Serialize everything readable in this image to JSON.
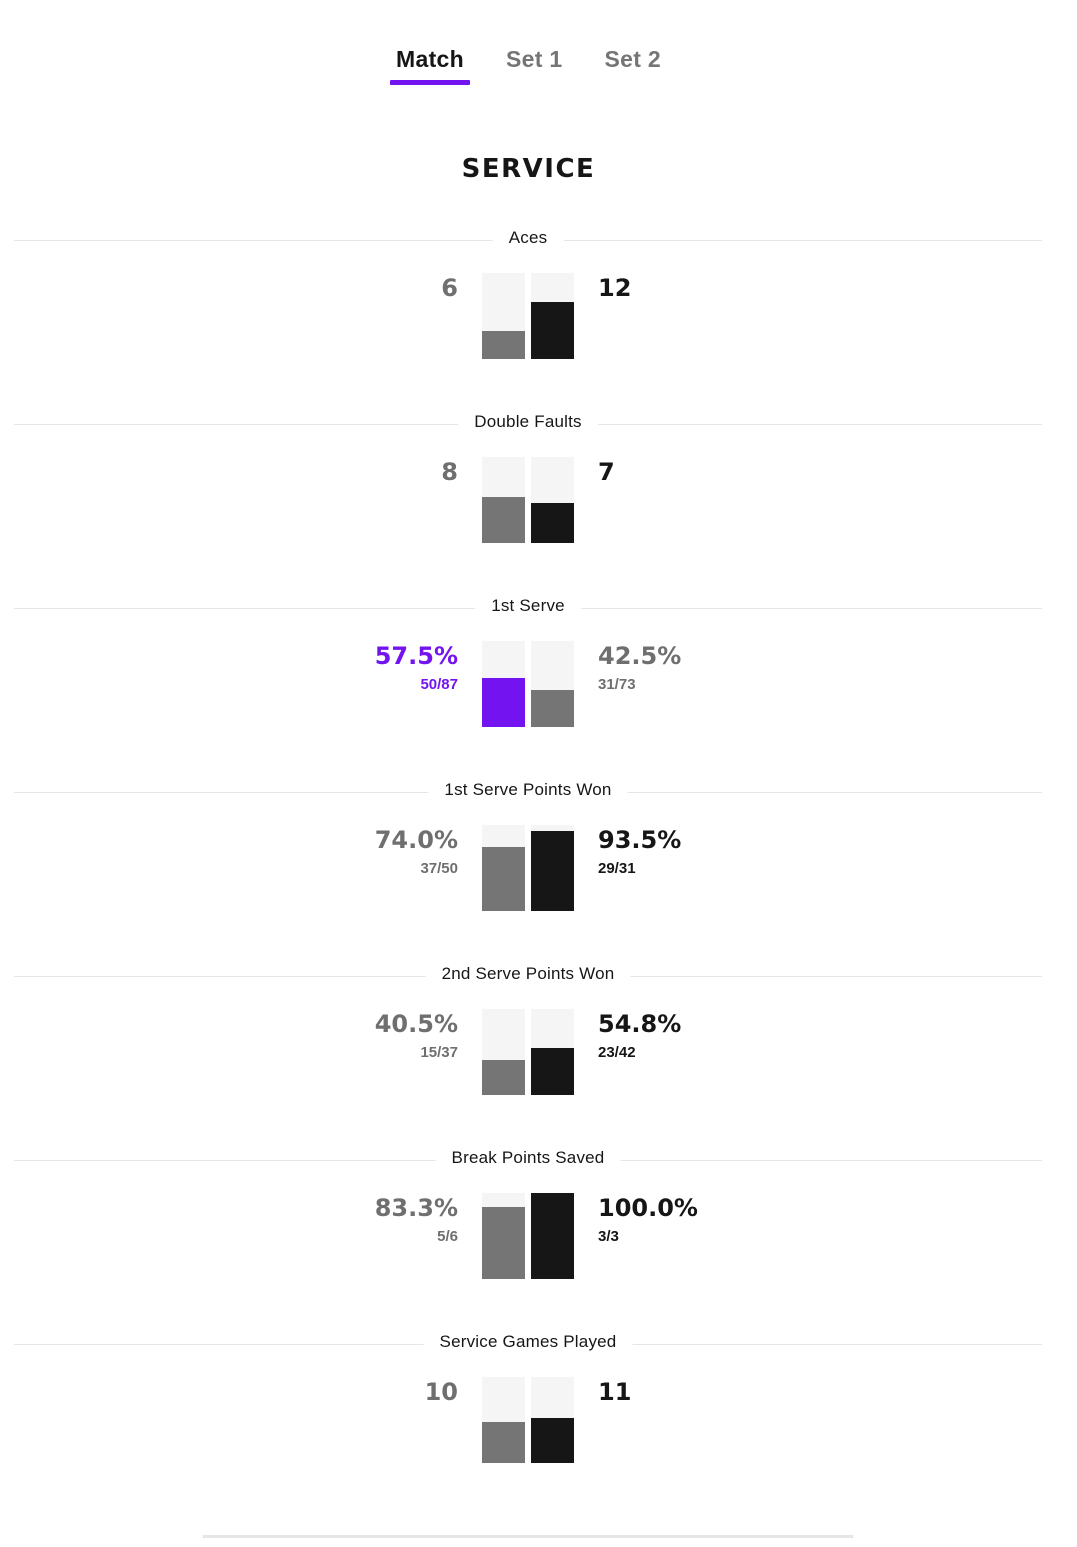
{
  "tabs": [
    "Match",
    "Set 1",
    "Set 2"
  ],
  "active_tab": 0,
  "section_title": "SERVICE",
  "colors": {
    "accent": "#7314f0",
    "gray": "#757575",
    "black": "#161616",
    "track": "#f5f5f5"
  },
  "stats": [
    {
      "label": "Aces",
      "left": "6",
      "right": "12",
      "left_sub": "",
      "right_sub": "",
      "left_level": 0.33,
      "right_level": 0.66,
      "left_color": "gray",
      "right_color": "black"
    },
    {
      "label": "Double Faults",
      "left": "8",
      "right": "7",
      "left_sub": "",
      "right_sub": "",
      "left_level": 0.53,
      "right_level": 0.47,
      "left_color": "gray",
      "right_color": "black"
    },
    {
      "label": "1st Serve",
      "left": "57.5%",
      "right": "42.5%",
      "left_sub": "50/87",
      "right_sub": "31/73",
      "left_level": 0.575,
      "right_level": 0.425,
      "left_color": "purple",
      "right_color": "gray"
    },
    {
      "label": "1st Serve Points Won",
      "left": "74.0%",
      "right": "93.5%",
      "left_sub": "37/50",
      "right_sub": "29/31",
      "left_level": 0.74,
      "right_level": 0.935,
      "left_color": "gray",
      "right_color": "black"
    },
    {
      "label": "2nd Serve Points Won",
      "left": "40.5%",
      "right": "54.8%",
      "left_sub": "15/37",
      "right_sub": "23/42",
      "left_level": 0.405,
      "right_level": 0.548,
      "left_color": "gray",
      "right_color": "black"
    },
    {
      "label": "Break Points Saved",
      "left": "83.3%",
      "right": "100.0%",
      "left_sub": "5/6",
      "right_sub": "3/3",
      "left_level": 0.833,
      "right_level": 1.0,
      "left_color": "gray",
      "right_color": "black"
    },
    {
      "label": "Service Games Played",
      "left": "10",
      "right": "11",
      "left_sub": "",
      "right_sub": "",
      "left_level": 0.476,
      "right_level": 0.524,
      "left_color": "gray",
      "right_color": "black"
    }
  ]
}
